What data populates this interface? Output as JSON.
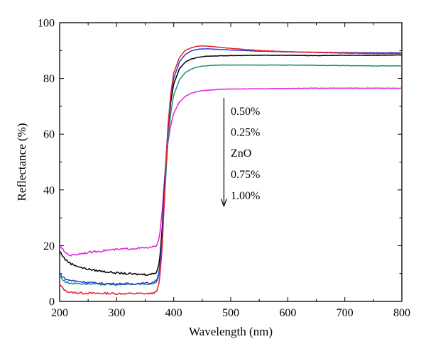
{
  "chart_data": {
    "type": "line",
    "title": "",
    "xlabel": "Wavelength (nm)",
    "ylabel": "Reflectance (%)",
    "xlim": [
      200,
      800
    ],
    "ylim": [
      0,
      100
    ],
    "xticks": [
      "200",
      "300",
      "400",
      "500",
      "600",
      "700",
      "800"
    ],
    "yticks": [
      "0",
      "20",
      "40",
      "60",
      "80",
      "100"
    ],
    "legend_order": [
      "0.50%",
      "0.25%",
      "ZnO",
      "0.75%",
      "1.00%"
    ],
    "series": [
      {
        "name": "0.50%",
        "color": "#e8202a",
        "x": [
          200,
          210,
          220,
          240,
          260,
          280,
          300,
          320,
          340,
          360,
          370,
          375,
          380,
          385,
          390,
          395,
          400,
          410,
          420,
          430,
          440,
          450,
          460,
          480,
          500,
          550,
          600,
          650,
          700,
          750,
          800
        ],
        "y": [
          6.0,
          3.8,
          3.2,
          3.0,
          2.9,
          2.9,
          2.8,
          2.8,
          2.8,
          2.8,
          3.5,
          7,
          20,
          43,
          63,
          75,
          82,
          87.5,
          90.0,
          91.0,
          91.5,
          91.7,
          91.6,
          91.2,
          90.8,
          90.0,
          89.6,
          89.3,
          89.1,
          88.9,
          88.9
        ]
      },
      {
        "name": "0.25%",
        "color": "#2a3dcf",
        "x": [
          200,
          210,
          220,
          240,
          260,
          280,
          300,
          320,
          340,
          360,
          370,
          375,
          380,
          385,
          390,
          395,
          400,
          410,
          420,
          430,
          440,
          450,
          460,
          480,
          500,
          550,
          600,
          650,
          700,
          750,
          800
        ],
        "y": [
          10.0,
          8.0,
          7.5,
          7.0,
          6.6,
          6.4,
          6.3,
          6.3,
          6.4,
          6.6,
          7.5,
          11,
          24,
          45,
          63,
          74,
          80,
          86.0,
          88.5,
          89.8,
          90.4,
          90.6,
          90.6,
          90.4,
          90.2,
          89.8,
          89.5,
          89.4,
          89.3,
          89.2,
          89.2
        ]
      },
      {
        "name": "ZnO",
        "color": "#000000",
        "x": [
          200,
          210,
          220,
          240,
          260,
          280,
          300,
          320,
          340,
          360,
          370,
          375,
          380,
          385,
          390,
          395,
          400,
          410,
          420,
          430,
          440,
          450,
          460,
          480,
          500,
          550,
          600,
          650,
          700,
          750,
          800
        ],
        "y": [
          18.0,
          15.0,
          13.5,
          12.0,
          11.2,
          10.7,
          10.2,
          9.9,
          9.7,
          9.7,
          10.5,
          14,
          27,
          46,
          62,
          72,
          78,
          83.5,
          85.8,
          86.9,
          87.5,
          87.8,
          88.0,
          88.1,
          88.2,
          88.3,
          88.3,
          88.2,
          88.3,
          88.3,
          88.4
        ]
      },
      {
        "name": "0.75%",
        "color": "#1f8f84",
        "x": [
          200,
          210,
          220,
          240,
          260,
          280,
          300,
          320,
          340,
          360,
          370,
          375,
          380,
          385,
          390,
          395,
          400,
          410,
          420,
          430,
          440,
          450,
          460,
          480,
          500,
          550,
          600,
          650,
          700,
          750,
          800
        ],
        "y": [
          9.0,
          7.0,
          6.5,
          6.4,
          6.2,
          6.1,
          6.0,
          6.1,
          6.2,
          6.3,
          7.0,
          10,
          22,
          41,
          58,
          68,
          74,
          79.5,
          82.0,
          83.3,
          84.0,
          84.4,
          84.6,
          84.8,
          84.8,
          84.8,
          84.8,
          84.7,
          84.6,
          84.5,
          84.5
        ]
      },
      {
        "name": "1.00%",
        "color": "#e020e0",
        "x": [
          200,
          210,
          220,
          240,
          260,
          280,
          300,
          320,
          340,
          360,
          370,
          375,
          380,
          385,
          390,
          395,
          400,
          410,
          420,
          430,
          440,
          450,
          460,
          480,
          500,
          550,
          600,
          650,
          700,
          750,
          800
        ],
        "y": [
          20.0,
          17.5,
          16.5,
          17.3,
          17.8,
          18.3,
          18.6,
          18.9,
          19.1,
          19.3,
          20.0,
          23,
          33,
          47,
          57,
          63.5,
          67.5,
          71.5,
          73.5,
          74.6,
          75.2,
          75.6,
          75.8,
          76.1,
          76.2,
          76.3,
          76.4,
          76.5,
          76.5,
          76.5,
          76.5
        ]
      }
    ],
    "annotation": "downward arrow spanning the legend list",
    "grid": false
  }
}
